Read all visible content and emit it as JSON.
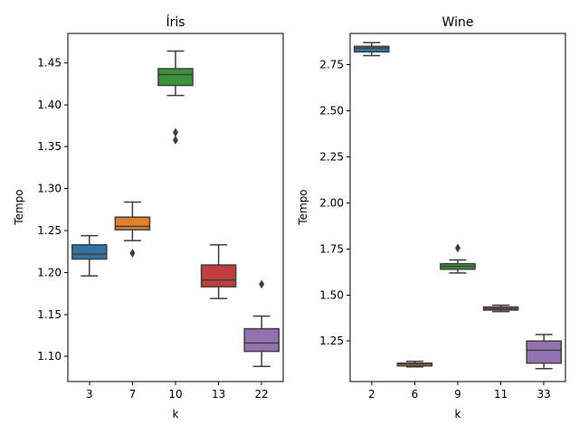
{
  "chart_data": [
    {
      "type": "box",
      "title": "Íris",
      "xlabel": "k",
      "ylabel": "Tempo",
      "ylim": [
        1.07,
        1.485
      ],
      "yticks": [
        "1.10",
        "1.15",
        "1.20",
        "1.25",
        "1.30",
        "1.35",
        "1.40",
        "1.45"
      ],
      "categories": [
        "3",
        "7",
        "10",
        "13",
        "22"
      ],
      "boxes": [
        {
          "category": "3",
          "color": "#3274a1",
          "whisker_low": 1.196,
          "q1": 1.216,
          "median": 1.222,
          "q3": 1.233,
          "whisker_high": 1.244,
          "outliers": []
        },
        {
          "category": "7",
          "color": "#e1812c",
          "whisker_low": 1.238,
          "q1": 1.251,
          "median": 1.255,
          "q3": 1.266,
          "whisker_high": 1.284,
          "outliers": [
            1.223
          ]
        },
        {
          "category": "10",
          "color": "#3a923a",
          "whisker_low": 1.411,
          "q1": 1.423,
          "median": 1.436,
          "q3": 1.443,
          "whisker_high": 1.464,
          "outliers": [
            1.367,
            1.358
          ]
        },
        {
          "category": "13",
          "color": "#c03d3e",
          "whisker_low": 1.169,
          "q1": 1.183,
          "median": 1.191,
          "q3": 1.209,
          "whisker_high": 1.233,
          "outliers": []
        },
        {
          "category": "22",
          "color": "#9372b2",
          "whisker_low": 1.088,
          "q1": 1.106,
          "median": 1.116,
          "q3": 1.133,
          "whisker_high": 1.148,
          "outliers": [
            1.186
          ]
        }
      ]
    },
    {
      "type": "box",
      "title": "Wine",
      "xlabel": "k",
      "ylabel": "Tempo",
      "ylim": [
        1.03,
        2.92
      ],
      "yticks": [
        "1.25",
        "1.50",
        "1.75",
        "2.00",
        "2.25",
        "2.50",
        "2.75"
      ],
      "categories": [
        "2",
        "6",
        "9",
        "11",
        "33"
      ],
      "boxes": [
        {
          "category": "2",
          "color": "#3274a1",
          "whisker_low": 2.8,
          "q1": 2.82,
          "median": 2.84,
          "q3": 2.85,
          "whisker_high": 2.87,
          "outliers": []
        },
        {
          "category": "6",
          "color": "#e1812c",
          "whisker_low": 1.11,
          "q1": 1.115,
          "median": 1.125,
          "q3": 1.13,
          "whisker_high": 1.14,
          "outliers": []
        },
        {
          "category": "9",
          "color": "#3a923a",
          "whisker_low": 1.62,
          "q1": 1.64,
          "median": 1.655,
          "q3": 1.67,
          "whisker_high": 1.69,
          "outliers": [
            1.755
          ]
        },
        {
          "category": "11",
          "color": "#c03d3e",
          "whisker_low": 1.41,
          "q1": 1.418,
          "median": 1.425,
          "q3": 1.435,
          "whisker_high": 1.445,
          "outliers": []
        },
        {
          "category": "33",
          "color": "#9372b2",
          "whisker_low": 1.1,
          "q1": 1.13,
          "median": 1.2,
          "q3": 1.25,
          "whisker_high": 1.285,
          "outliers": []
        }
      ]
    }
  ]
}
